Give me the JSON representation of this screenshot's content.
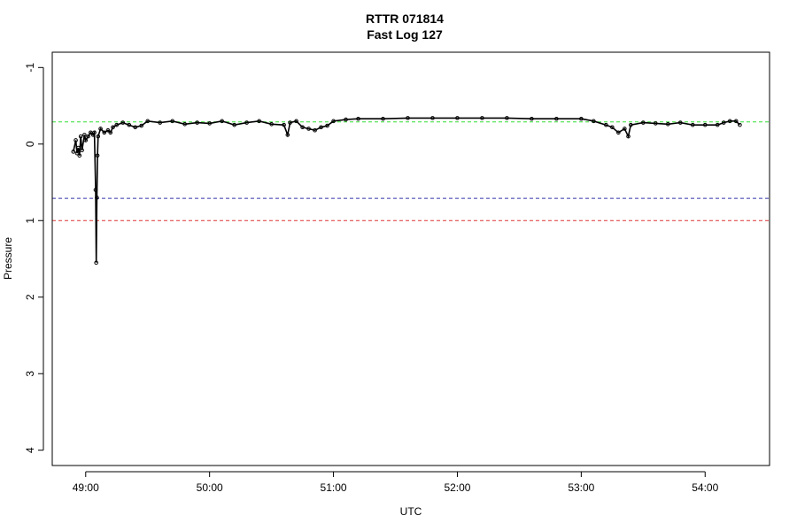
{
  "chart_data": {
    "type": "line",
    "title": "RTTR 071814",
    "subtitle": "Fast Log 127",
    "xlabel": "UTC",
    "ylabel": "Pressure",
    "x_unit": "minute",
    "xlim": [
      48.73,
      54.52
    ],
    "ylim": [
      4.2,
      -1.2
    ],
    "y_reversed": true,
    "x_ticks": [
      49,
      50,
      51,
      52,
      53,
      54
    ],
    "x_tick_labels": [
      "49:00",
      "50:00",
      "51:00",
      "52:00",
      "53:00",
      "54:00"
    ],
    "y_ticks": [
      -1,
      0,
      1,
      2,
      3,
      4
    ],
    "y_tick_labels": [
      "-1",
      "0",
      "1",
      "2",
      "3",
      "4"
    ],
    "reference_lines": [
      {
        "y": -0.29,
        "color": "#33dd33"
      },
      {
        "y": 0.71,
        "color": "#3333aa"
      },
      {
        "y": 1.0,
        "color": "#dd3333"
      }
    ],
    "series": [
      {
        "color": "#000000",
        "x": [
          48.9,
          48.92,
          48.93,
          48.94,
          48.95,
          48.96,
          48.97,
          48.99,
          49.0,
          49.02,
          49.04,
          49.06,
          49.07,
          49.08,
          49.085,
          49.09,
          49.095,
          49.1,
          49.12,
          49.15,
          49.18,
          49.2,
          49.22,
          49.25,
          49.3,
          49.35,
          49.4,
          49.45,
          49.5,
          49.6,
          49.7,
          49.8,
          49.9,
          50.0,
          50.1,
          50.2,
          50.3,
          50.4,
          50.5,
          50.6,
          50.63,
          50.65,
          50.7,
          50.75,
          50.8,
          50.85,
          50.9,
          50.95,
          51.0,
          51.1,
          51.2,
          51.4,
          51.6,
          51.8,
          52.0,
          52.2,
          52.4,
          52.6,
          52.8,
          53.0,
          53.1,
          53.2,
          53.25,
          53.3,
          53.35,
          53.38,
          53.4,
          53.5,
          53.6,
          53.7,
          53.8,
          53.9,
          54.0,
          54.1,
          54.15,
          54.2,
          54.25,
          54.28
        ],
        "y": [
          0.1,
          -0.05,
          0.12,
          0.05,
          0.15,
          -0.1,
          0.08,
          -0.12,
          -0.05,
          -0.1,
          -0.15,
          -0.12,
          -0.15,
          0.6,
          1.55,
          0.7,
          0.15,
          -0.1,
          -0.2,
          -0.15,
          -0.18,
          -0.15,
          -0.22,
          -0.25,
          -0.28,
          -0.25,
          -0.22,
          -0.24,
          -0.3,
          -0.28,
          -0.3,
          -0.26,
          -0.28,
          -0.27,
          -0.3,
          -0.25,
          -0.28,
          -0.3,
          -0.26,
          -0.25,
          -0.12,
          -0.28,
          -0.3,
          -0.22,
          -0.2,
          -0.18,
          -0.22,
          -0.24,
          -0.3,
          -0.32,
          -0.33,
          -0.33,
          -0.34,
          -0.34,
          -0.34,
          -0.34,
          -0.34,
          -0.33,
          -0.33,
          -0.33,
          -0.3,
          -0.25,
          -0.22,
          -0.15,
          -0.2,
          -0.1,
          -0.25,
          -0.28,
          -0.27,
          -0.26,
          -0.28,
          -0.25,
          -0.25,
          -0.25,
          -0.28,
          -0.3,
          -0.3,
          -0.25
        ]
      }
    ]
  }
}
